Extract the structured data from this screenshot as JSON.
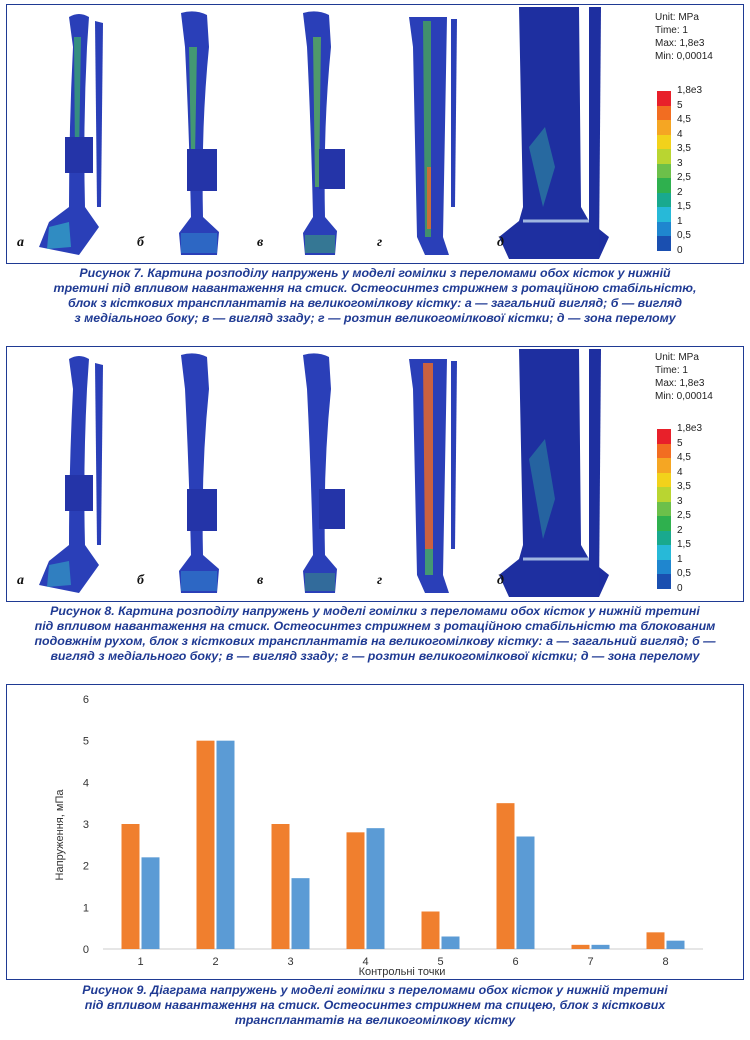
{
  "figure7": {
    "panels": [
      "а",
      "б",
      "в",
      "г",
      "д"
    ],
    "legend": {
      "header": [
        "Unit: MPa",
        "Time: 1",
        "Max: 1,8e3",
        "Min: 0,00014"
      ],
      "labels": [
        "1,8e3",
        "5",
        "4,5",
        "4",
        "3,5",
        "3",
        "2,5",
        "2",
        "1,5",
        "1",
        "0,5",
        "0"
      ],
      "colors": [
        "#e8202a",
        "#f26d21",
        "#f5a623",
        "#f2d21b",
        "#b9d531",
        "#6cc04a",
        "#2fb04e",
        "#19a98e",
        "#27b9d8",
        "#1f86cf",
        "#1a4fb0"
      ]
    },
    "caption": [
      "Рисунок 7. Картина розподілу напружень у моделі гомілки з переломами обох кісток у нижній",
      "третині під впливом навантаження на стиск. Остеосинтез стрижнем з ротаційною стабільністю,",
      "блок з кісткових трансплантатів на великогомілкову кістку: а — загальний вигляд; б — вигляд",
      "з медіального боку; в — вигляд ззаду; г — розтин великогомілкової кістки; д — зона перелому"
    ]
  },
  "figure8": {
    "panels": [
      "а",
      "б",
      "в",
      "г",
      "д"
    ],
    "legend": {
      "header": [
        "Unit: MPa",
        "Time: 1",
        "Max: 1,8e3",
        "Min: 0,00014"
      ],
      "labels": [
        "1,8e3",
        "5",
        "4,5",
        "4",
        "3,5",
        "3",
        "2,5",
        "2",
        "1,5",
        "1",
        "0,5",
        "0"
      ],
      "colors": [
        "#e8202a",
        "#f26d21",
        "#f5a623",
        "#f2d21b",
        "#b9d531",
        "#6cc04a",
        "#2fb04e",
        "#19a98e",
        "#27b9d8",
        "#1f86cf",
        "#1a4fb0"
      ]
    },
    "caption": [
      "Рисунок 8. Картина розподілу напружень у моделі гомілки з переломами обох кісток у нижній третині",
      "під впливом навантаження на стиск. Остеосинтез стрижнем з ротаційною стабільністю та блокованим",
      "подовжнім рухом, блок з кісткових трансплантатів на великогомілкову кістку: а — загальний вигляд; б —",
      "вигляд з медіального боку; в — вигляд ззаду; г — розтин великогомілкової кістки; д — зона перелому"
    ]
  },
  "figure9": {
    "caption": [
      "Рисунок 9. Діаграма напружень у моделі гомілки з переломами обох кісток у нижній третині",
      "під впливом навантаження на стиск. Остеосинтез стрижнем та спицею, блок з кісткових",
      "трансплантатів на великогомілкову кістку"
    ],
    "chart_data": {
      "type": "bar",
      "categories": [
        "1",
        "2",
        "3",
        "4",
        "5",
        "6",
        "7",
        "8"
      ],
      "series": [
        {
          "values": [
            3.0,
            5.0,
            3.0,
            2.8,
            0.9,
            3.5,
            0.1,
            0.4
          ],
          "color": "#f07f2e"
        },
        {
          "values": [
            2.2,
            5.0,
            1.7,
            2.9,
            0.3,
            2.7,
            0.1,
            0.2
          ],
          "color": "#5b9bd5"
        }
      ],
      "xlabel": "Контрольні точки",
      "ylabel": "Напруження, мПа",
      "ylim": [
        0,
        6
      ],
      "yticks": [
        "0",
        "1",
        "2",
        "3",
        "4",
        "5",
        "6"
      ],
      "grid": false,
      "legend": "none"
    }
  }
}
